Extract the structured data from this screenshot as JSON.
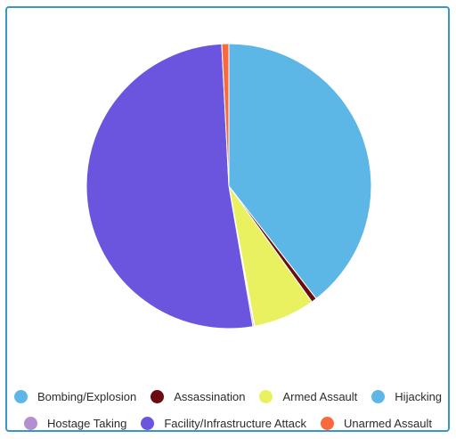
{
  "chart_data": {
    "type": "pie",
    "title": "",
    "legend_position": "bottom",
    "slices": [
      {
        "label": "Bombing/Explosion",
        "value": 39.5,
        "color": "#5db7e6"
      },
      {
        "label": "Assassination",
        "value": 0.6,
        "color": "#6b0b0f"
      },
      {
        "label": "Armed Assault",
        "value": 7.0,
        "color": "#eaf160"
      },
      {
        "label": "Hijacking",
        "value": 0.05,
        "color": "#5db7e6"
      },
      {
        "label": "Hostage Taking",
        "value": 0.15,
        "color": "#b38fd0"
      },
      {
        "label": "Facility/Infrastructure Attack",
        "value": 51.9,
        "color": "#6b55de"
      },
      {
        "label": "Unarmed Assault",
        "value": 0.8,
        "color": "#f8693c"
      }
    ],
    "legend_rows": [
      [
        0,
        1,
        2,
        3
      ],
      [
        4,
        5,
        6
      ]
    ]
  }
}
